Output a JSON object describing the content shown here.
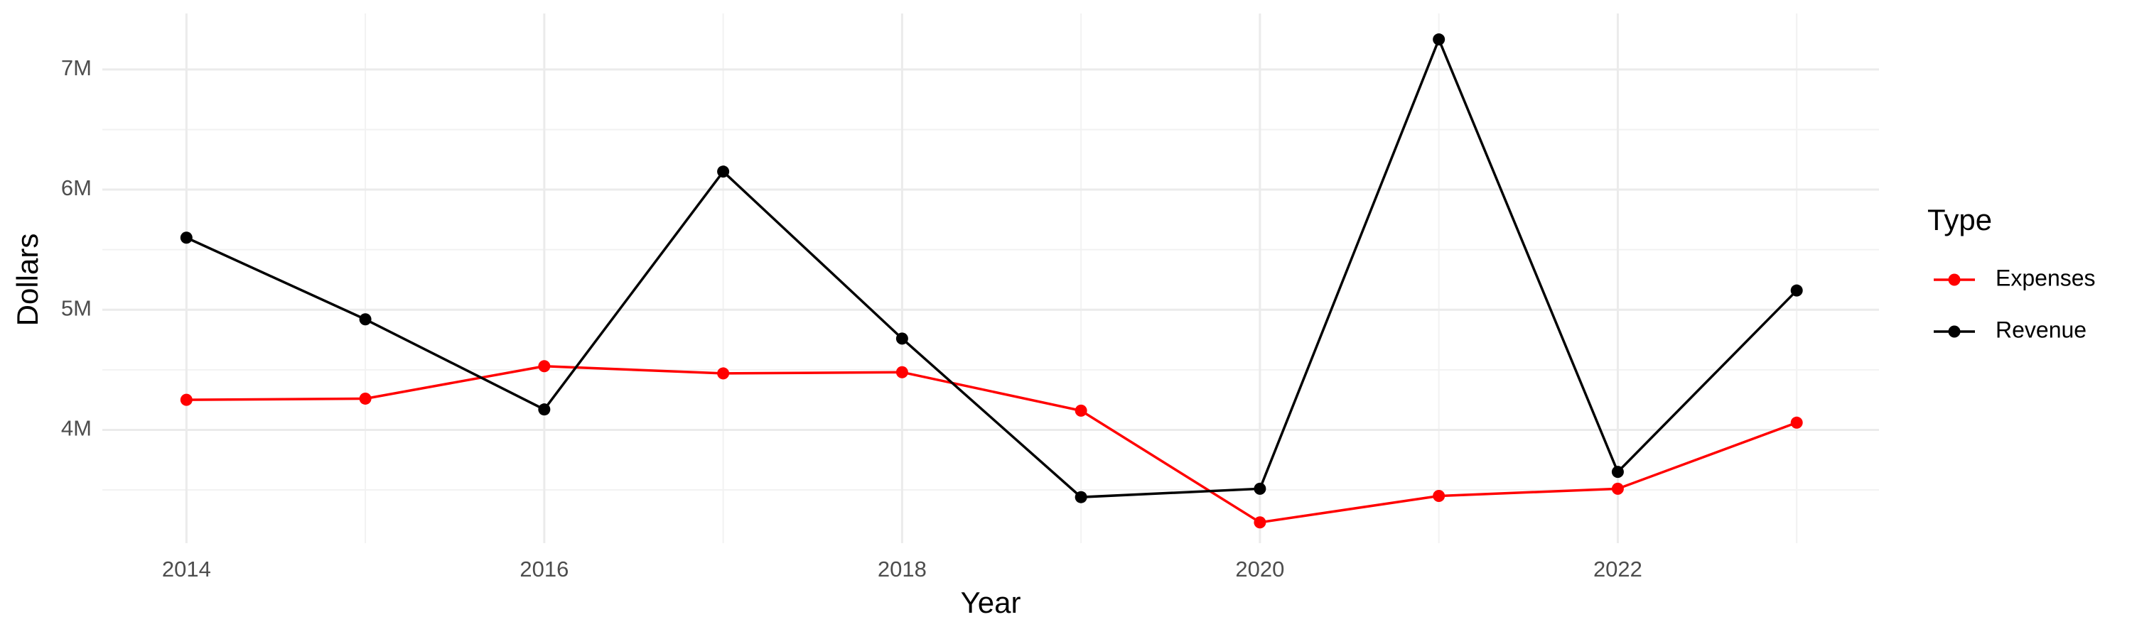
{
  "chart_data": {
    "type": "line",
    "x_label": "Year",
    "y_label": "Dollars",
    "legend_title": "Type",
    "x": [
      2014,
      2015,
      2016,
      2017,
      2018,
      2019,
      2020,
      2021,
      2022,
      2023
    ],
    "series": [
      {
        "name": "Expenses",
        "color": "#ff0000",
        "values": [
          4250000,
          4260000,
          4530000,
          4470000,
          4480000,
          4160000,
          3230000,
          3450000,
          3510000,
          4060000
        ]
      },
      {
        "name": "Revenue",
        "color": "#000000",
        "values": [
          5600000,
          4920000,
          4170000,
          6150000,
          4760000,
          3440000,
          3510000,
          7250000,
          3650000,
          5160000
        ]
      }
    ],
    "xlim": [
      2013.53,
      2023.46
    ],
    "xticks": [
      2014,
      2016,
      2018,
      2020,
      2022
    ],
    "ylim": [
      3057000,
      7466000
    ],
    "yticks": [
      {
        "value": 4000000,
        "label": "4M"
      },
      {
        "value": 5000000,
        "label": "5M"
      },
      {
        "value": 6000000,
        "label": "6M"
      },
      {
        "value": 7000000,
        "label": "7M"
      }
    ],
    "grid": true,
    "legend_position": "right"
  }
}
